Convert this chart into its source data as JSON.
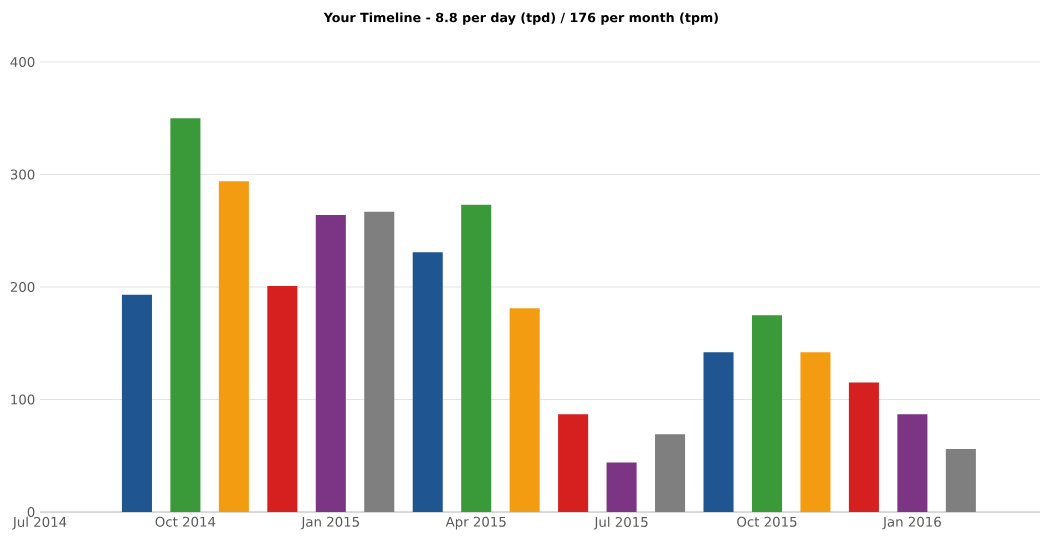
{
  "chart_data": {
    "type": "bar",
    "title": "Your Timeline - 8.8 per day (tpd) / 176 per month (tpm)",
    "x": [
      "2014-09",
      "2014-10",
      "2014-11",
      "2014-12",
      "2015-01",
      "2015-02",
      "2015-03",
      "2015-04",
      "2015-05",
      "2015-06",
      "2015-07",
      "2015-08",
      "2015-09",
      "2015-10",
      "2015-11",
      "2015-12",
      "2016-01",
      "2016-02"
    ],
    "values": [
      193,
      350,
      294,
      201,
      264,
      267,
      231,
      273,
      181,
      87,
      44,
      69,
      142,
      175,
      142,
      115,
      87,
      56
    ],
    "colors": [
      "#1f5590",
      "#3a9a3a",
      "#f39c12",
      "#d62020",
      "#7b3584",
      "#7f7f7f",
      "#1f5590",
      "#3a9a3a",
      "#f39c12",
      "#d62020",
      "#7b3584",
      "#7f7f7f",
      "#1f5590",
      "#3a9a3a",
      "#f39c12",
      "#d62020",
      "#7b3584",
      "#7f7f7f"
    ],
    "xlim": [
      "2014-07",
      "2016-03-20"
    ],
    "xticks": [
      {
        "value": "2014-07",
        "label": "Jul 2014"
      },
      {
        "value": "2014-10",
        "label": "Oct 2014"
      },
      {
        "value": "2015-01",
        "label": "Jan 2015"
      },
      {
        "value": "2015-04",
        "label": "Apr 2015"
      },
      {
        "value": "2015-07",
        "label": "Jul 2015"
      },
      {
        "value": "2015-10",
        "label": "Oct 2015"
      },
      {
        "value": "2016-01",
        "label": "Jan 2016"
      }
    ],
    "ylim": [
      0,
      400
    ],
    "yticks": [
      0,
      100,
      200,
      300,
      400
    ],
    "grid": "y"
  }
}
